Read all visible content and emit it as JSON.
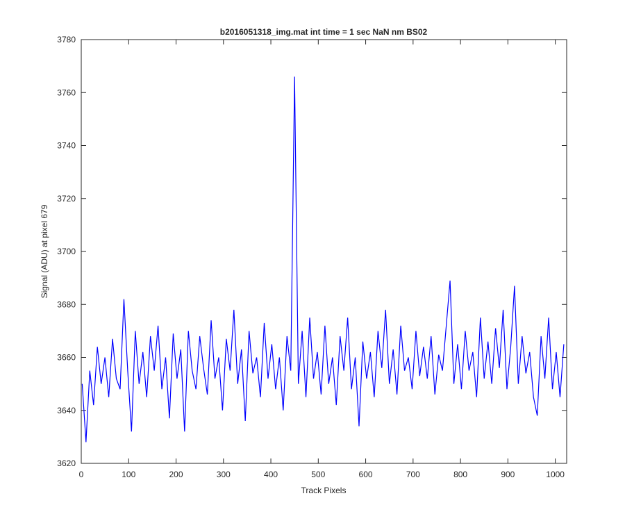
{
  "chart_data": {
    "type": "line",
    "title": "b2016051318_img.mat int time = 1 sec  NaN nm BS02",
    "x_label": "Track Pixels",
    "y_label": "Signal (ADU) at pixel 679",
    "x": [
      2,
      10,
      18,
      26,
      34,
      42,
      50,
      58,
      66,
      74,
      82,
      90,
      98,
      106,
      114,
      122,
      130,
      138,
      146,
      154,
      162,
      170,
      178,
      186,
      194,
      202,
      210,
      218,
      226,
      234,
      242,
      250,
      258,
      266,
      274,
      282,
      290,
      298,
      306,
      314,
      322,
      330,
      338,
      346,
      354,
      362,
      370,
      378,
      386,
      394,
      402,
      410,
      418,
      426,
      434,
      442,
      450,
      458,
      466,
      474,
      482,
      490,
      498,
      506,
      514,
      522,
      530,
      538,
      546,
      554,
      562,
      570,
      578,
      586,
      594,
      602,
      610,
      618,
      626,
      634,
      642,
      650,
      658,
      666,
      674,
      682,
      690,
      698,
      706,
      714,
      722,
      730,
      738,
      746,
      754,
      762,
      770,
      778,
      786,
      794,
      802,
      810,
      818,
      826,
      834,
      842,
      850,
      858,
      866,
      874,
      882,
      890,
      898,
      906,
      914,
      922,
      930,
      938,
      946,
      954,
      962,
      970,
      978,
      986,
      994,
      1002,
      1010,
      1018
    ],
    "series": [
      {
        "color": "#0000ff",
        "values": [
          3650,
          3628,
          3655,
          3642,
          3664,
          3650,
          3660,
          3645,
          3667,
          3652,
          3648,
          3682,
          3655,
          3632,
          3670,
          3650,
          3662,
          3645,
          3668,
          3655,
          3672,
          3648,
          3660,
          3637,
          3669,
          3652,
          3663,
          3632,
          3670,
          3655,
          3648,
          3668,
          3656,
          3646,
          3674,
          3652,
          3660,
          3640,
          3667,
          3655,
          3678,
          3650,
          3663,
          3636,
          3670,
          3654,
          3660,
          3645,
          3673,
          3652,
          3665,
          3648,
          3660,
          3640,
          3668,
          3655,
          3766,
          3650,
          3670,
          3645,
          3675,
          3652,
          3662,
          3646,
          3672,
          3650,
          3660,
          3642,
          3668,
          3655,
          3675,
          3648,
          3660,
          3634,
          3666,
          3652,
          3662,
          3645,
          3670,
          3656,
          3678,
          3650,
          3663,
          3646,
          3672,
          3655,
          3660,
          3648,
          3670,
          3653,
          3664,
          3652,
          3668,
          3646,
          3661,
          3655,
          3672,
          3689,
          3650,
          3665,
          3648,
          3670,
          3655,
          3662,
          3645,
          3675,
          3652,
          3666,
          3650,
          3671,
          3656,
          3678,
          3648,
          3664,
          3687,
          3650,
          3668,
          3654,
          3662,
          3645,
          3638,
          3668,
          3652,
          3675,
          3648,
          3662,
          3645,
          3665
        ]
      }
    ],
    "xlim": [
      0,
      1024
    ],
    "xticks": [
      0,
      100,
      200,
      300,
      400,
      500,
      600,
      700,
      800,
      900,
      1000
    ],
    "ylim": [
      3620,
      3780
    ],
    "yticks": [
      3620,
      3640,
      3660,
      3680,
      3700,
      3720,
      3740,
      3760,
      3780
    ],
    "grid": false
  }
}
